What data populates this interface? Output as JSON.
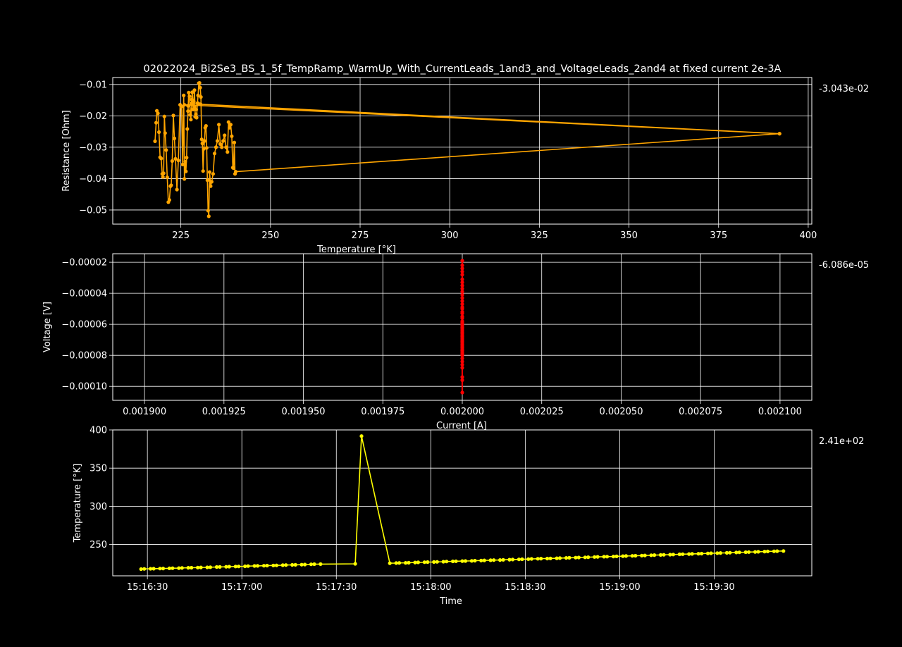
{
  "figure": {
    "title": "02022024_Bi2Se3_BS_1_5f_TempRamp_WarmUp_With_CurrentLeads_1and3_and_VoltageLeads_2and4 at fixed current 2e-3A"
  },
  "chart_data": [
    {
      "type": "line",
      "xlabel": "Temperature [°K]",
      "ylabel": "Resistance [Ohm]",
      "xlim": [
        206,
        401
      ],
      "ylim": [
        -0.0545,
        -0.0078
      ],
      "xticks": [
        225,
        250,
        275,
        300,
        325,
        350,
        375,
        400
      ],
      "xtick_labels": [
        "225",
        "250",
        "275",
        "300",
        "325",
        "350",
        "375",
        "400"
      ],
      "yticks": [
        -0.05,
        -0.04,
        -0.03,
        -0.02,
        -0.01
      ],
      "ytick_labels": [
        "−0.05",
        "−0.04",
        "−0.03",
        "−0.02",
        "−0.01"
      ],
      "grid": true,
      "side_annotation": "-3.043e-02",
      "series": [
        {
          "color": "#ffa500",
          "x": [
            217.8,
            218.1,
            218.3,
            218.6,
            218.9,
            219.2,
            219.5,
            219.8,
            220.0,
            220.2,
            220.4,
            220.6,
            220.9,
            221.2,
            221.5,
            221.8,
            222.1,
            222.3,
            222.6,
            222.9,
            223.2,
            223.5,
            223.9,
            224.3,
            224.8,
            225.2,
            225.5,
            225.8,
            226.0,
            226.2,
            226.4,
            226.6,
            226.8,
            227.0,
            227.2,
            227.4,
            227.6,
            227.8,
            228.0,
            228.2,
            228.4,
            228.6,
            228.8,
            229.0,
            229.2,
            229.4,
            229.6,
            229.8,
            230.0,
            230.2,
            230.4,
            230.6,
            230.8,
            231.0,
            231.2,
            231.4,
            231.6,
            231.8,
            232.0,
            232.2,
            232.4,
            232.6,
            232.8,
            233.0,
            233.3,
            233.6,
            234.0,
            234.4,
            234.8,
            235.2,
            235.6,
            236.0,
            236.4,
            236.8,
            237.2,
            237.6,
            238.0,
            238.3,
            238.6,
            238.9,
            239.2,
            239.5,
            239.7,
            239.9,
            240.1,
            240.3,
            392.0,
            230.5,
            229.8,
            229.3,
            228.8,
            228.0,
            227.0,
            226.0,
            392.0
          ],
          "y": [
            -0.0281,
            -0.0222,
            -0.0184,
            -0.0192,
            -0.0252,
            -0.0332,
            -0.0336,
            -0.0385,
            -0.0395,
            -0.0383,
            -0.0202,
            -0.0255,
            -0.0309,
            -0.0396,
            -0.0475,
            -0.0468,
            -0.0424,
            -0.0421,
            -0.0344,
            -0.0199,
            -0.0272,
            -0.0337,
            -0.0435,
            -0.0342,
            -0.0165,
            -0.017,
            -0.0355,
            -0.0135,
            -0.0401,
            -0.0346,
            -0.0377,
            -0.0333,
            -0.0242,
            -0.0185,
            -0.0126,
            -0.0138,
            -0.0197,
            -0.0212,
            -0.0148,
            -0.0125,
            -0.018,
            -0.0154,
            -0.0118,
            -0.0203,
            -0.0195,
            -0.0206,
            -0.016,
            -0.0135,
            -0.0096,
            -0.0095,
            -0.011,
            -0.014,
            -0.0275,
            -0.0288,
            -0.0376,
            -0.0305,
            -0.028,
            -0.0238,
            -0.0232,
            -0.0302,
            -0.0405,
            -0.0502,
            -0.052,
            -0.0379,
            -0.0424,
            -0.041,
            -0.0385,
            -0.032,
            -0.03,
            -0.028,
            -0.0228,
            -0.029,
            -0.03,
            -0.028,
            -0.0262,
            -0.03,
            -0.0315,
            -0.022,
            -0.0238,
            -0.0228,
            -0.0265,
            -0.0365,
            -0.0367,
            -0.0285,
            -0.0385,
            -0.0378,
            -0.0257,
            -0.0163,
            -0.016,
            -0.018,
            -0.017,
            -0.016,
            -0.0168,
            -0.0165,
            -0.0257
          ]
        }
      ]
    },
    {
      "type": "scatter",
      "xlabel": "Current [A]",
      "ylabel": "Voltage [V]",
      "xlim": [
        0.00189,
        0.00211
      ],
      "ylim": [
        -0.000109,
        -1.45e-05
      ],
      "xticks": [
        0.0019,
        0.001925,
        0.00195,
        0.001975,
        0.002,
        0.002025,
        0.00205,
        0.002075,
        0.0021
      ],
      "xtick_labels": [
        "0.001900",
        "0.001925",
        "0.001950",
        "0.001975",
        "0.002000",
        "0.002025",
        "0.002050",
        "0.002075",
        "0.002100"
      ],
      "yticks": [
        -0.0001,
        -8e-05,
        -6e-05,
        -4e-05,
        -2e-05
      ],
      "ytick_labels": [
        "−0.00010",
        "−0.00008",
        "−0.00006",
        "−0.00004",
        "−0.00002"
      ],
      "grid": true,
      "side_annotation": "-6.086e-05",
      "series": [
        {
          "color": "#ff0000",
          "x": [
            0.002,
            0.002,
            0.002,
            0.002,
            0.002,
            0.002,
            0.002,
            0.002,
            0.002,
            0.002,
            0.002,
            0.002,
            0.002,
            0.002,
            0.002,
            0.002,
            0.002,
            0.002,
            0.002,
            0.002,
            0.002,
            0.002,
            0.002,
            0.002,
            0.002,
            0.002,
            0.002,
            0.002,
            0.002,
            0.002,
            0.002,
            0.002,
            0.002,
            0.002,
            0.002,
            0.002,
            0.002,
            0.002,
            0.002,
            0.002,
            0.002,
            0.002,
            0.002,
            0.002,
            0.002,
            0.002,
            0.002,
            0.002,
            0.002,
            0.002
          ],
          "y": [
            -1.9e-05,
            -2.2e-05,
            -2.4e-05,
            -2.6e-05,
            -2.8e-05,
            -3.1e-05,
            -3.3e-05,
            -3.5e-05,
            -3.7e-05,
            -3.9e-05,
            -4.1e-05,
            -4.3e-05,
            -4.5e-05,
            -4.7e-05,
            -4.9e-05,
            -5e-05,
            -5.2e-05,
            -5.3e-05,
            -5.5e-05,
            -5.6e-05,
            -5.8e-05,
            -5.9e-05,
            -6e-05,
            -6.1e-05,
            -6.2e-05,
            -6.3e-05,
            -6.4e-05,
            -6.5e-05,
            -6.6e-05,
            -6.7e-05,
            -6.8e-05,
            -6.9e-05,
            -7e-05,
            -7.1e-05,
            -7.2e-05,
            -7.3e-05,
            -7.4e-05,
            -7.5e-05,
            -7.6e-05,
            -7.7e-05,
            -7.8e-05,
            -7.9e-05,
            -8e-05,
            -8.2e-05,
            -8.4e-05,
            -8.6e-05,
            -8.8e-05,
            -9.4e-05,
            -9.6e-05,
            -0.000104
          ]
        }
      ]
    },
    {
      "type": "line",
      "xlabel": "Time",
      "ylabel": "Temperature [°K]",
      "xlim": [
        "15:16:19",
        "15:20:01"
      ],
      "ylim": [
        209,
        400
      ],
      "xticks": [
        "15:16:30",
        "15:17:00",
        "15:17:30",
        "15:18:00",
        "15:18:30",
        "15:19:00",
        "15:19:30"
      ],
      "xtick_labels": [
        "15:16:30",
        "15:17:00",
        "15:17:30",
        "15:18:00",
        "15:18:30",
        "15:19:00",
        "15:19:30"
      ],
      "yticks": [
        250,
        300,
        350,
        400
      ],
      "ytick_labels": [
        "250",
        "300",
        "350",
        "400"
      ],
      "grid": true,
      "side_annotation": "2.41e+02",
      "series": [
        {
          "color": "#ffff00",
          "x": [
            "15:16:28",
            "15:16:29",
            "15:16:31",
            "15:16:32",
            "15:16:34",
            "15:16:35",
            "15:16:37",
            "15:16:38",
            "15:16:40",
            "15:16:41",
            "15:16:43",
            "15:16:44",
            "15:16:46",
            "15:16:47",
            "15:16:49",
            "15:16:50",
            "15:16:52",
            "15:16:53",
            "15:16:55",
            "15:16:56",
            "15:16:58",
            "15:16:59",
            "15:17:01",
            "15:17:02",
            "15:17:04",
            "15:17:05",
            "15:17:07",
            "15:17:08",
            "15:17:10",
            "15:17:11",
            "15:17:13",
            "15:17:14",
            "15:17:16",
            "15:17:17",
            "15:17:19",
            "15:17:20",
            "15:17:22",
            "15:17:23",
            "15:17:25",
            "15:17:36",
            "15:17:38",
            "15:17:47",
            "15:17:49",
            "15:17:50",
            "15:17:52",
            "15:17:53",
            "15:17:55",
            "15:17:56",
            "15:17:58",
            "15:17:59",
            "15:18:01",
            "15:18:02",
            "15:18:04",
            "15:18:05",
            "15:18:07",
            "15:18:08",
            "15:18:10",
            "15:18:11",
            "15:18:13",
            "15:18:14",
            "15:18:16",
            "15:18:17",
            "15:18:19",
            "15:18:20",
            "15:18:22",
            "15:18:23",
            "15:18:25",
            "15:18:26",
            "15:18:28",
            "15:18:29",
            "15:18:31",
            "15:18:32",
            "15:18:34",
            "15:18:35",
            "15:18:37",
            "15:18:38",
            "15:18:40",
            "15:18:41",
            "15:18:43",
            "15:18:44",
            "15:18:46",
            "15:18:47",
            "15:18:49",
            "15:18:50",
            "15:18:52",
            "15:18:53",
            "15:18:55",
            "15:18:56",
            "15:18:58",
            "15:18:59",
            "15:19:01",
            "15:19:02",
            "15:19:04",
            "15:19:05",
            "15:19:07",
            "15:19:08",
            "15:19:10",
            "15:19:11",
            "15:19:13",
            "15:19:14",
            "15:19:16",
            "15:19:17",
            "15:19:19",
            "15:19:20",
            "15:19:22",
            "15:19:23",
            "15:19:25",
            "15:19:26",
            "15:19:28",
            "15:19:29",
            "15:19:31",
            "15:19:32",
            "15:19:34",
            "15:19:35",
            "15:19:37",
            "15:19:38",
            "15:19:40",
            "15:19:41",
            "15:19:43",
            "15:19:44",
            "15:19:46",
            "15:19:47",
            "15:19:49",
            "15:19:50",
            "15:19:52"
          ],
          "y": [
            217.8,
            218.0,
            218.2,
            218.3,
            218.5,
            218.6,
            218.8,
            219.0,
            219.1,
            219.3,
            219.5,
            219.6,
            219.8,
            220.0,
            220.1,
            220.3,
            220.5,
            220.6,
            220.8,
            221.0,
            221.2,
            221.3,
            221.5,
            221.7,
            221.9,
            222.0,
            222.2,
            222.4,
            222.6,
            222.7,
            222.9,
            223.1,
            223.3,
            223.4,
            223.6,
            223.8,
            224.0,
            224.2,
            224.3,
            224.7,
            392.0,
            225.5,
            225.7,
            225.9,
            226.0,
            226.2,
            226.4,
            226.6,
            226.8,
            227.0,
            227.1,
            227.3,
            227.5,
            227.7,
            227.9,
            228.1,
            228.3,
            228.4,
            228.6,
            228.8,
            229.0,
            229.2,
            229.4,
            229.6,
            229.7,
            229.9,
            230.1,
            230.3,
            230.5,
            230.7,
            230.9,
            231.1,
            231.3,
            231.5,
            231.6,
            231.8,
            232.0,
            232.2,
            232.4,
            232.6,
            232.8,
            233.0,
            233.2,
            233.4,
            233.6,
            233.8,
            234.0,
            234.1,
            234.3,
            234.5,
            234.7,
            234.9,
            235.1,
            235.3,
            235.5,
            235.7,
            235.9,
            236.1,
            236.3,
            236.5,
            236.7,
            236.9,
            237.1,
            237.3,
            237.5,
            237.7,
            237.9,
            238.1,
            238.3,
            238.5,
            238.7,
            238.9,
            239.1,
            239.3,
            239.5,
            239.7,
            239.9,
            240.1,
            240.3,
            240.5,
            240.7,
            240.9,
            241.1,
            241.3,
            241.5
          ]
        }
      ]
    }
  ]
}
